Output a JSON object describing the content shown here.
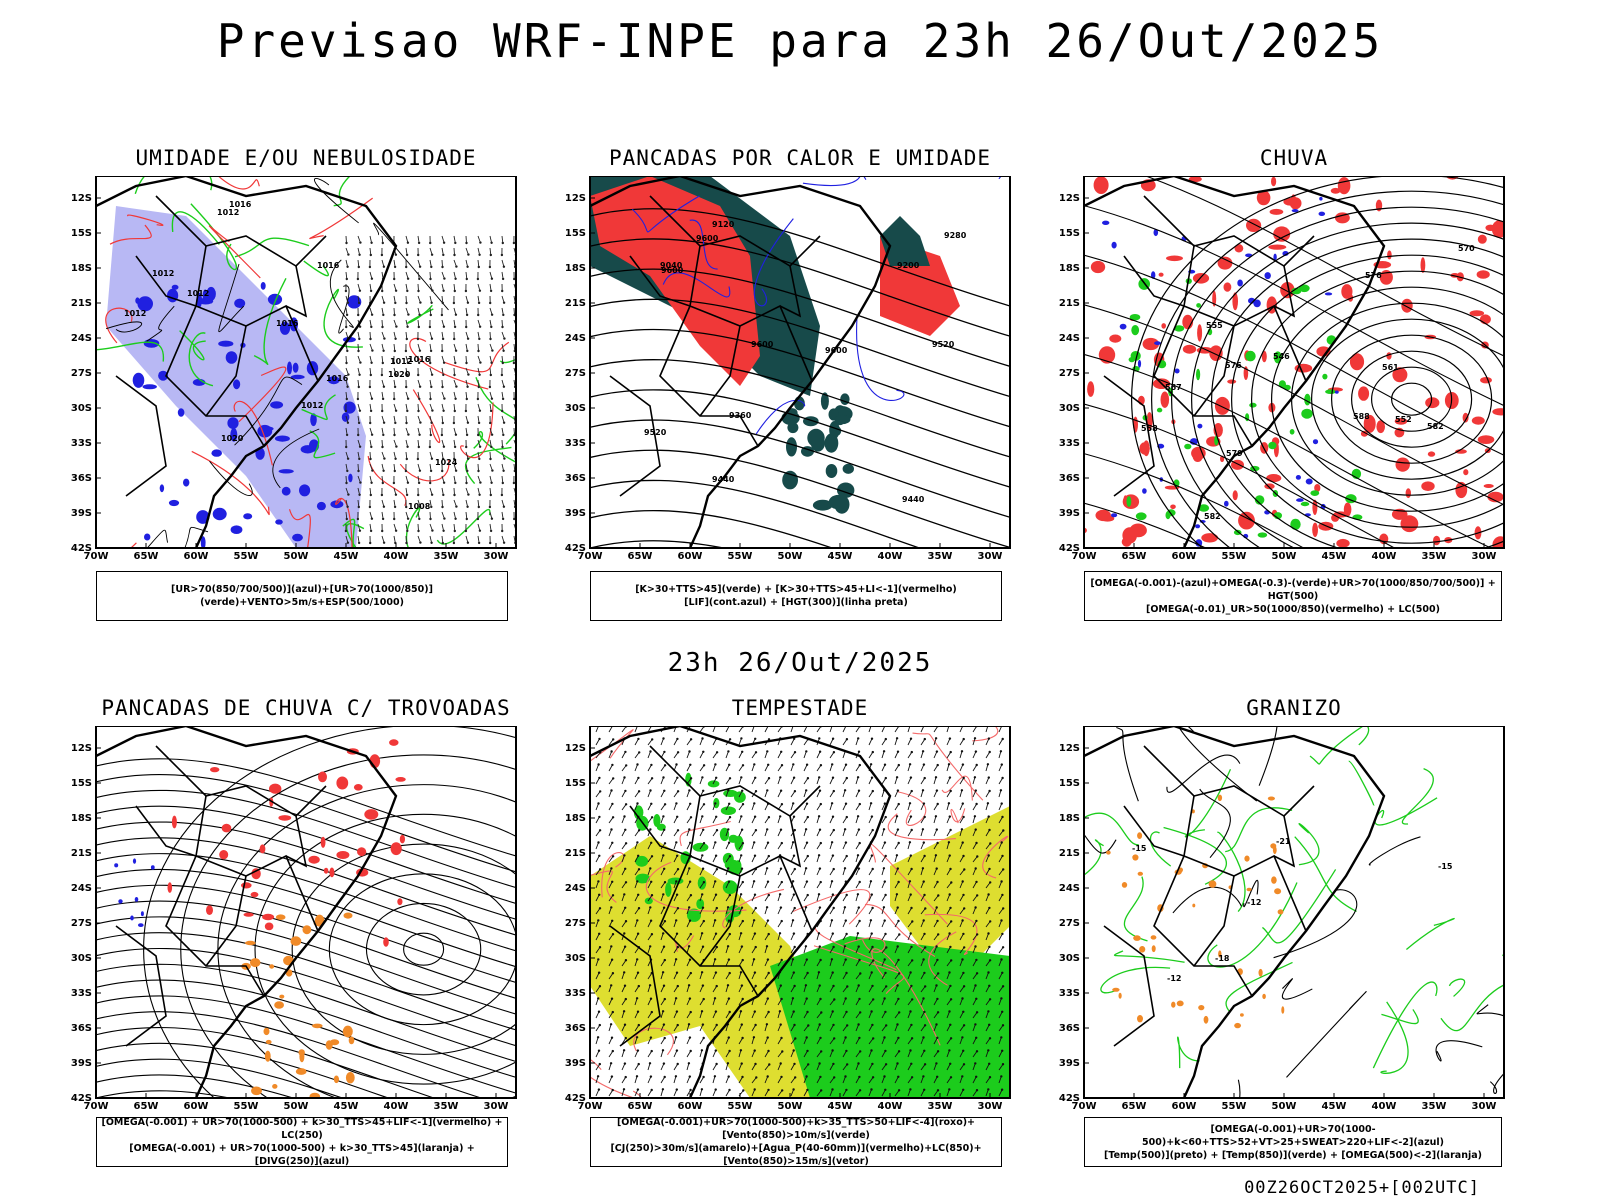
{
  "main_title": "Previsao WRF-INPE  para 23h 26/Out/2025",
  "center_label": "23h 26/Out/2025",
  "footer": "00Z26OCT2025+[002UTC]",
  "axes": {
    "lat_labels": [
      "12S",
      "15S",
      "18S",
      "21S",
      "24S",
      "27S",
      "30S",
      "33S",
      "36S",
      "39S",
      "42S"
    ],
    "lon_labels": [
      "70W",
      "65W",
      "60W",
      "55W",
      "50W",
      "45W",
      "40W",
      "35W",
      "30W"
    ]
  },
  "panels": [
    {
      "title": "UMIDADE E/OU NEBULOSIDADE",
      "legend": [
        "[UR>70(850/700/500)](azul)+[UR>70(1000/850)](verde)+VENTO>5m/s+ESP(500/1000)"
      ],
      "contour_labels": [
        "1012",
        "1012",
        "1016",
        "1012",
        "1020",
        "1016",
        "1012",
        "1016",
        "1024",
        "1020",
        "1016",
        "1012",
        "1008",
        "1016",
        "1012"
      ]
    },
    {
      "title": "PANCADAS POR CALOR E UMIDADE",
      "legend": [
        "[K>30+TTS>45](verde) + [K>30+TTS>45+LI<-1](vermelho)",
        "[LIF](cont.azul) + [HGT(300)](linha preta)"
      ],
      "contour_labels": [
        "9600",
        "9520",
        "9600",
        "9440",
        "9520",
        "9600",
        "9600",
        "9440",
        "9360",
        "9280",
        "9200",
        "9120",
        "9040"
      ]
    },
    {
      "title": "CHUVA",
      "legend": [
        "[OMEGA(-0.001)-(azul)+OMEGA(-0.3)-(verde)+UR>70(1000/850/700/500)] + HGT(500)",
        "[OMEGA(-0.01)_UR>50(1000/850)(vermelho) + LC(500)"
      ],
      "contour_labels": [
        "582",
        "588",
        "576",
        "579",
        "582",
        "576",
        "567",
        "570",
        "561",
        "558",
        "555",
        "552",
        "546"
      ]
    },
    {
      "title": "PANCADAS DE CHUVA C/ TROVOADAS",
      "legend": [
        "[OMEGA(-0.001) + UR>70(1000-500) + k>30_TTS>45+LIF<-1](vermelho) + LC(250)",
        "[OMEGA(-0.001) + UR>70(1000-500) + k>30_TTS>45](laranja) + [DIVG(250)](azul)"
      ]
    },
    {
      "title": "TEMPESTADE",
      "legend": [
        "[OMEGA(-0.001)+UR>70(1000-500)+k>35_TTS>50+LIF<-4](roxo)+[Vento(850)>10m/s](verde)",
        "[CJ(250)>30m/s](amarelo)+[Agua_P(40-60mm)](vermelho)+LC(850)+[Vento(850)>15m/s](vetor)"
      ]
    },
    {
      "title": "GRANIZO",
      "legend": [
        "[OMEGA(-0.001)+UR>70(1000-500)+k<60+TTS>52+VT>25+SWEAT>220+LIF<-2](azul)",
        "[Temp(500)](preto) + [Temp(850)](verde) + [OMEGA(500)<-2](laranja)"
      ],
      "contour_labels": [
        "-12",
        "-15",
        "-12",
        "-15",
        "-18",
        "-21"
      ]
    }
  ],
  "colors": {
    "red": "#f03838",
    "green": "#1ccc1c",
    "blue": "#2020e0",
    "lightblue": "#b8b8f4",
    "darkteal": "#174a4a",
    "orange": "#f08a28",
    "yellow": "#dede30",
    "pink": "#f46a6a"
  }
}
